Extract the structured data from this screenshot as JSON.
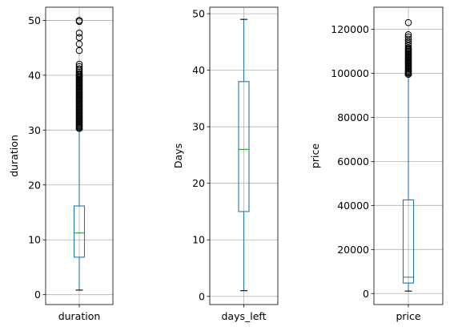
{
  "chart_data": [
    {
      "type": "box",
      "xlabel": "",
      "ylabel": "duration",
      "category": "duration",
      "grid": true,
      "ylim": [
        -1.8,
        52.4
      ],
      "yticks": [
        0,
        10,
        20,
        30,
        40,
        50
      ],
      "stats": {
        "whislo": 0.83,
        "q1": 6.83,
        "median": 11.25,
        "q3": 16.17,
        "whishi": 30.2
      },
      "fliers": [
        30.3,
        30.5,
        30.7,
        30.9,
        31.1,
        31.3,
        31.5,
        31.7,
        31.9,
        32.1,
        32.3,
        32.5,
        32.7,
        32.9,
        33.1,
        33.3,
        33.5,
        33.7,
        33.9,
        34.1,
        34.3,
        34.5,
        34.7,
        34.9,
        35.1,
        35.3,
        35.5,
        35.7,
        35.9,
        36.1,
        36.3,
        36.5,
        36.7,
        36.9,
        37.1,
        37.3,
        37.5,
        37.7,
        37.9,
        38.1,
        38.3,
        38.5,
        38.7,
        38.9,
        39.1,
        39.3,
        39.5,
        39.7,
        39.9,
        40.1,
        40.3,
        40.6,
        40.9,
        41.2,
        41.6,
        42.0,
        44.5,
        45.7,
        46.9,
        47.7,
        49.8,
        50.0
      ]
    },
    {
      "type": "box",
      "xlabel": "",
      "ylabel": "Days",
      "category": "days_left",
      "grid": true,
      "ylim": [
        -1.45,
        51.15
      ],
      "yticks": [
        0,
        10,
        20,
        30,
        40,
        50
      ],
      "stats": {
        "whislo": 1,
        "q1": 15,
        "median": 26,
        "q3": 38,
        "whishi": 49
      },
      "fliers": []
    },
    {
      "type": "box",
      "xlabel": "",
      "ylabel": "price",
      "category": "price",
      "grid": true,
      "ylim": [
        -5000,
        130000
      ],
      "yticks": [
        0,
        20000,
        40000,
        60000,
        80000,
        100000,
        120000
      ],
      "stats": {
        "whislo": 1105,
        "q1": 4783,
        "median": 7425,
        "q3": 42521,
        "whishi": 99129
      },
      "fliers": [
        99500,
        100000,
        100500,
        101000,
        101500,
        102000,
        102500,
        103000,
        103500,
        104000,
        104500,
        105000,
        105500,
        106000,
        106500,
        107000,
        107500,
        108000,
        108500,
        109000,
        109500,
        110000,
        110500,
        111000,
        111500,
        112500,
        113500,
        114500,
        115500,
        116500,
        117500,
        123000
      ]
    }
  ]
}
